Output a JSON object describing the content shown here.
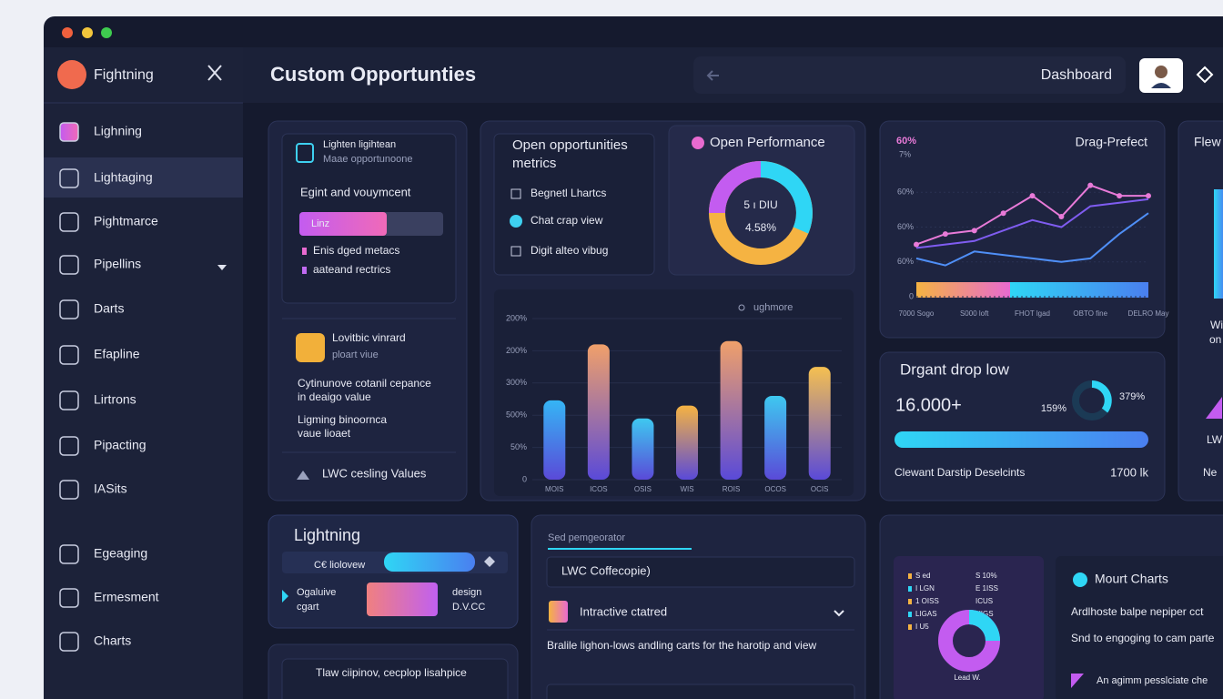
{
  "app": {
    "name": "Fightning"
  },
  "sidebar": {
    "items": [
      "Lighning",
      "Lightaging",
      "Pightmarce",
      "Pipellins",
      "Darts",
      "Efapline",
      "Lirtrons",
      "Pipacting",
      "IASits",
      "Egeaging",
      "Ermesment",
      "Charts"
    ]
  },
  "header": {
    "title": "Custom Opportunties",
    "nav": "Dashboard"
  },
  "card1": {
    "box_title": "Lighten ligihtean",
    "box_sub": "Maae opportunoone",
    "heading": "Egint and vouymcent",
    "pill": "Linz",
    "lines": [
      "Enis dged metacs",
      "aateand rectrics"
    ],
    "sub_title": "Lovitbic vinrard",
    "sub_sub": "ploart viue",
    "desc": [
      "Cytinunove cotanil cepance",
      "in deaigo value",
      "Ligming binoornca",
      "vaue lioaet"
    ],
    "footer": "LWC cesling Values"
  },
  "metrics": {
    "title": [
      "Open opportunities",
      "metrics"
    ],
    "items": [
      "Begnetl Lhartcs",
      "Chat crap view",
      "Digit alteo vibug"
    ]
  },
  "performance": {
    "title": "Open Performance",
    "center": [
      "5 ı DIU",
      "4.58%"
    ]
  },
  "drop": {
    "title": "Drgant drop low",
    "value": "16.000+",
    "left_pct": "159%",
    "right_pct": "379%",
    "footer": "Clewant Darstip Deselcints",
    "footer_value": "1700 lk"
  },
  "edge": {
    "texts": [
      "Flew",
      "Wi",
      "on",
      "LW",
      "Ne"
    ]
  },
  "lightning": {
    "title": "Lightning",
    "strip": "C€ liolovew",
    "left": [
      "Ogaluive",
      "cgart"
    ],
    "right": [
      "design",
      "D.V.CC"
    ],
    "bottom": "Tlaw ciipinov, cecplop lisahpice"
  },
  "editor": {
    "tab": "Sed pemgeorator",
    "field": "LWC Coffecopie)",
    "select": "Intractive ctatred",
    "text": "Bralile lighon-lows andling carts for the harotip and view"
  },
  "mount": {
    "legend_left": [
      "S ed",
      "I LGN",
      "1 OISS",
      "LIGAS",
      "I U5"
    ],
    "legend_right": [
      "S 10%",
      "E 1ISS",
      "ICUS",
      "UIGS"
    ],
    "donut_label": "Lead W.",
    "title": "Mourt Charts",
    "lines": [
      "Ardlhoste balpe nepiper cct",
      "Snd to engoging to cam parte",
      "An agimm pesslciate che"
    ]
  },
  "chart_data": [
    {
      "type": "bar",
      "legend_label": "ughmore",
      "categories": [
        "MOIS",
        "ICOS",
        "OSIS",
        "WIS",
        "ROIS",
        "OCOS",
        "OCIS"
      ],
      "values": [
        2.46,
        4.2,
        1.9,
        2.3,
        4.3,
        2.6,
        3.5
      ],
      "colors": [
        "#35b5f5",
        "#f0a06a",
        "#3ec8f0",
        "#f5b342",
        "#f0a06a",
        "#3ec8f0",
        "#f5c050"
      ],
      "ylim": [
        0,
        5
      ],
      "yticks": [
        0,
        {
          "value": 1,
          "label": "50%"
        },
        {
          "value": 2,
          "label": "500%"
        },
        {
          "value": 3,
          "label": "300%"
        },
        {
          "value": 4,
          "label": "200%"
        },
        {
          "value": 5,
          "label": "200%"
        }
      ],
      "grid": true
    },
    {
      "type": "line",
      "title": "Drag-Prefect",
      "legend_label": "60%",
      "legend_sub": "7%",
      "categories": [
        "7000 Sogo",
        null,
        "S000 loft",
        null,
        "FHOT lgad",
        null,
        "OBTO fine",
        null,
        "DELRO May"
      ],
      "series": [
        {
          "color": "#e87ad8",
          "values": [
            1.5,
            1.8,
            1.9,
            2.4,
            2.9,
            2.3,
            3.2,
            2.9,
            2.9
          ]
        },
        {
          "color": "#7f5cf0",
          "values": [
            1.4,
            1.5,
            1.6,
            1.9,
            2.2,
            2.0,
            2.6,
            2.7,
            2.8
          ]
        },
        {
          "color": "#4f8ff7",
          "values": [
            1.1,
            0.9,
            1.3,
            1.2,
            1.1,
            1.0,
            1.1,
            1.8,
            2.4
          ]
        }
      ],
      "ylim": [
        0,
        4
      ],
      "yticks": [
        0,
        {
          "value": 1,
          "label": "60%"
        },
        {
          "value": 2,
          "label": "60%"
        },
        {
          "value": 3,
          "label": "60%"
        }
      ],
      "grid": true
    }
  ]
}
